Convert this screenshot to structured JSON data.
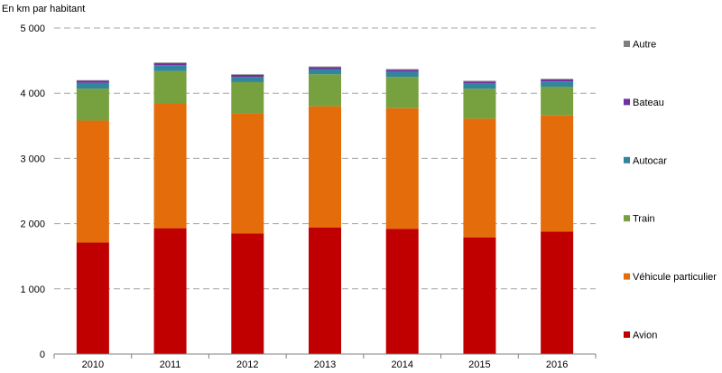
{
  "chart_data": {
    "type": "bar",
    "stacked": true,
    "title": "",
    "ylabel": "En km par habitant",
    "xlabel": "",
    "ylim": [
      0,
      5000
    ],
    "yticks": [
      0,
      1000,
      2000,
      3000,
      4000,
      5000
    ],
    "ytick_labels": [
      "0",
      "1 000",
      "2 000",
      "3 000",
      "4 000",
      "5 000"
    ],
    "categories": [
      "2010",
      "2011",
      "2012",
      "2013",
      "2014",
      "2015",
      "2016"
    ],
    "legend_position": "right",
    "series": [
      {
        "name": "Avion",
        "color": "#c00000",
        "values": [
          1710,
          1930,
          1850,
          1940,
          1920,
          1790,
          1880
        ]
      },
      {
        "name": "Véhicule particulier",
        "color": "#e46c0a",
        "values": [
          1870,
          1920,
          1840,
          1860,
          1850,
          1820,
          1780
        ]
      },
      {
        "name": "Train",
        "color": "#77a03e",
        "values": [
          490,
          490,
          480,
          490,
          480,
          460,
          440
        ]
      },
      {
        "name": "Autocar",
        "color": "#31859c",
        "values": [
          90,
          90,
          80,
          80,
          80,
          80,
          80
        ]
      },
      {
        "name": "Bateau",
        "color": "#7030a0",
        "values": [
          30,
          30,
          30,
          30,
          30,
          30,
          30
        ]
      },
      {
        "name": "Autre",
        "color": "#7f7f7f",
        "values": [
          10,
          10,
          10,
          10,
          10,
          10,
          10
        ]
      }
    ]
  }
}
